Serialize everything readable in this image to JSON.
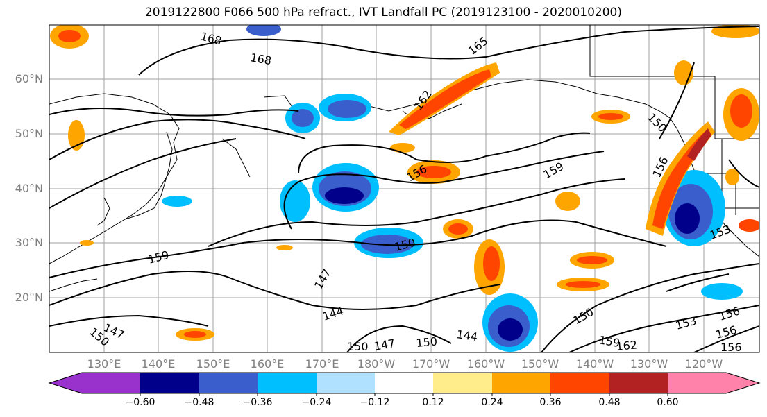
{
  "title": "2019122800 F066 500 hPa refract., IVT Landfall PC (2019123100 - 2020010200)",
  "lat_labels": [
    "60°N",
    "50°N",
    "40°N",
    "30°N",
    "20°N"
  ],
  "lon_labels": [
    "130°E",
    "140°E",
    "150°E",
    "160°E",
    "170°E",
    "180°W",
    "170°W",
    "160°W",
    "150°W",
    "140°W",
    "130°W",
    "120°W"
  ],
  "contour_labels": [
    "168",
    "168",
    "165",
    "162",
    "159",
    "159",
    "156",
    "156",
    "156",
    "153",
    "150",
    "150",
    "150",
    "150",
    "147",
    "147",
    "147",
    "144",
    "144",
    "162",
    "159",
    "153",
    "156",
    "156",
    "150",
    "150"
  ],
  "colorbar": {
    "ticks": [
      "−0.60",
      "−0.48",
      "−0.36",
      "−0.24",
      "−0.12",
      "0.12",
      "0.24",
      "0.36",
      "0.48",
      "0.60"
    ],
    "colors": [
      "#9932cc",
      "#00008b",
      "#3a5fcd",
      "#00bfff",
      "#b0e2ff",
      "#ffffff",
      "#ffec8b",
      "#ffa500",
      "#ff4500",
      "#b22222",
      "#ff82ab"
    ]
  }
}
